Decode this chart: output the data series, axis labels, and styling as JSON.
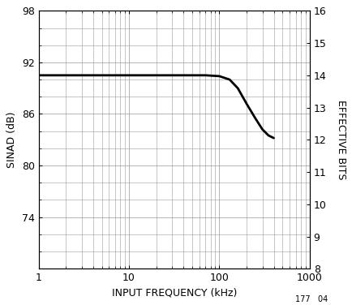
{
  "x_min": 1,
  "x_max": 1000,
  "y_left_min": 68,
  "y_left_max": 98,
  "y_left_ticks": [
    74,
    80,
    86,
    92,
    98
  ],
  "y_left_label": "SINAD (dB)",
  "y_right_min": 8,
  "y_right_max": 16,
  "y_right_ticks": [
    8,
    9,
    10,
    11,
    12,
    13,
    14,
    15,
    16
  ],
  "y_right_label": "EFFECTIVE BITS",
  "x_label": "INPUT FREQUENCY (kHz)",
  "x_ticks": [
    1,
    10,
    100,
    1000
  ],
  "x_tick_labels": [
    "1",
    "10",
    "100",
    "1000"
  ],
  "curve_x": [
    1,
    2,
    3,
    5,
    7,
    10,
    20,
    30,
    50,
    70,
    100,
    130,
    160,
    200,
    250,
    300,
    350,
    400
  ],
  "curve_y": [
    90.5,
    90.5,
    90.5,
    90.5,
    90.5,
    90.5,
    90.5,
    90.5,
    90.5,
    90.5,
    90.4,
    90.0,
    89.0,
    87.2,
    85.5,
    84.2,
    83.5,
    83.2
  ],
  "line_color": "#000000",
  "line_width": 2.0,
  "grid_major_color": "#999999",
  "grid_minor_color": "#999999",
  "background_color": "#ffffff",
  "footnote": "177   04",
  "font_size": 9,
  "font_family": "sans-serif"
}
